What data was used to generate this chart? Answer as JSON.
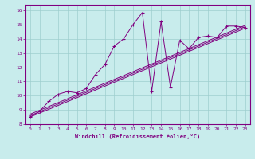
{
  "xlabel": "Windchill (Refroidissement éolien,°C)",
  "bg_color": "#c8ecec",
  "line_color": "#800080",
  "grid_color": "#9ecece",
  "xlim": [
    -0.5,
    23.5
  ],
  "ylim": [
    8,
    16.4
  ],
  "xticks": [
    0,
    1,
    2,
    3,
    4,
    5,
    6,
    7,
    8,
    9,
    10,
    11,
    12,
    13,
    14,
    15,
    16,
    17,
    18,
    19,
    20,
    21,
    22,
    23
  ],
  "yticks": [
    8,
    9,
    10,
    11,
    12,
    13,
    14,
    15,
    16
  ],
  "series1_x": [
    0,
    1,
    2,
    3,
    4,
    5,
    6,
    7,
    8,
    9,
    10,
    11,
    12,
    13,
    14,
    15,
    16,
    17,
    18,
    19,
    20,
    21,
    22,
    23
  ],
  "series1_y": [
    8.5,
    8.9,
    9.6,
    10.1,
    10.3,
    10.2,
    10.5,
    11.5,
    12.2,
    13.5,
    14.0,
    15.0,
    15.85,
    10.3,
    15.2,
    10.6,
    13.9,
    13.3,
    14.1,
    14.2,
    14.1,
    14.9,
    14.9,
    14.8
  ],
  "trend1_x": [
    0,
    23
  ],
  "trend1_y": [
    8.5,
    14.75
  ],
  "trend2_x": [
    0,
    23
  ],
  "trend2_y": [
    8.6,
    14.85
  ],
  "trend3_x": [
    0,
    23
  ],
  "trend3_y": [
    8.7,
    14.95
  ]
}
